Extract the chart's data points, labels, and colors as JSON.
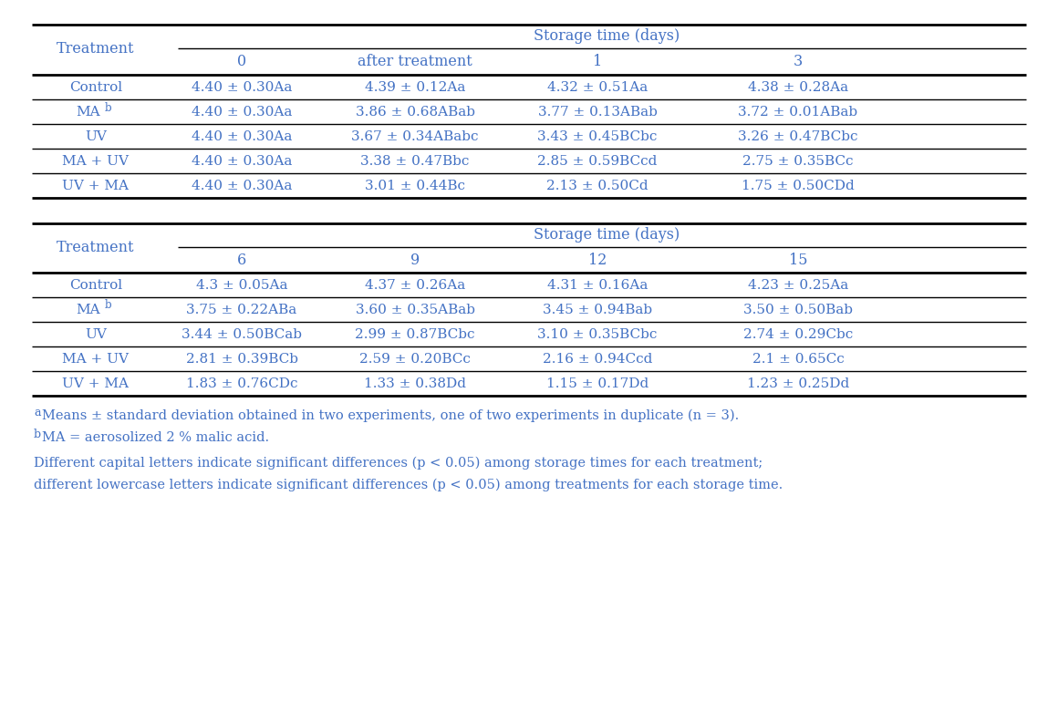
{
  "table1_headers_sub": [
    "0",
    "after treatment",
    "1",
    "3"
  ],
  "table1_col_header": "Storage time (days)",
  "table1_rows": [
    [
      "Control",
      "4.40 ± 0.30Aa",
      "4.39 ± 0.12Aa",
      "4.32 ± 0.51Aa",
      "4.38 ± 0.28Aa"
    ],
    [
      "MA",
      "4.40 ± 0.30Aa",
      "3.86 ± 0.68ABab",
      "3.77 ± 0.13ABab",
      "3.72 ± 0.01ABab"
    ],
    [
      "UV",
      "4.40 ± 0.30Aa",
      "3.67 ± 0.34ABabc",
      "3.43 ± 0.45BCbc",
      "3.26 ± 0.47BCbc"
    ],
    [
      "MA + UV",
      "4.40 ± 0.30Aa",
      "3.38 ± 0.47Bbc",
      "2.85 ± 0.59BCcd",
      "2.75 ± 0.35BCc"
    ],
    [
      "UV + MA",
      "4.40 ± 0.30Aa",
      "3.01 ± 0.44Bc",
      "2.13 ± 0.50Cd",
      "1.75 ± 0.50CDd"
    ]
  ],
  "table2_headers_sub": [
    "6",
    "9",
    "12",
    "15"
  ],
  "table2_col_header": "Storage time (days)",
  "table2_rows": [
    [
      "Control",
      "4.3 ± 0.05Aa",
      "4.37 ± 0.26Aa",
      "4.31 ± 0.16Aa",
      "4.23 ± 0.25Aa"
    ],
    [
      "MA",
      "3.75 ± 0.22ABa",
      "3.60 ± 0.35ABab",
      "3.45 ± 0.94Bab",
      "3.50 ± 0.50Bab"
    ],
    [
      "UV",
      "3.44 ± 0.50BCab",
      "2.99 ± 0.87BCbc",
      "3.10 ± 0.35BCbc",
      "2.74 ± 0.29Cbc"
    ],
    [
      "MA + UV",
      "2.81 ± 0.39BCb",
      "2.59 ± 0.20BCc",
      "2.16 ± 0.94Ccd",
      "2.1 ± 0.65Cc"
    ],
    [
      "UV + MA",
      "1.83 ± 0.76CDc",
      "1.33 ± 0.38Dd",
      "1.15 ± 0.17Dd",
      "1.23 ± 0.25Dd"
    ]
  ],
  "footnote1": "Means ± standard deviation obtained in two experiments, one of two experiments in duplicate (n = 3).",
  "footnote2": "MA = aerosolized 2 % malic acid.",
  "footnote3": "Different capital letters indicate significant differences (p < 0.05) among storage times for each treatment;",
  "footnote4": "different lowercase letters indicate significant differences (p < 0.05) among treatments for each storage time.",
  "text_color": "#4472c4",
  "line_color": "#000000",
  "bg_color": "#ffffff",
  "font_size": 11.0,
  "header_font_size": 11.5,
  "footnote_font_size": 10.5
}
